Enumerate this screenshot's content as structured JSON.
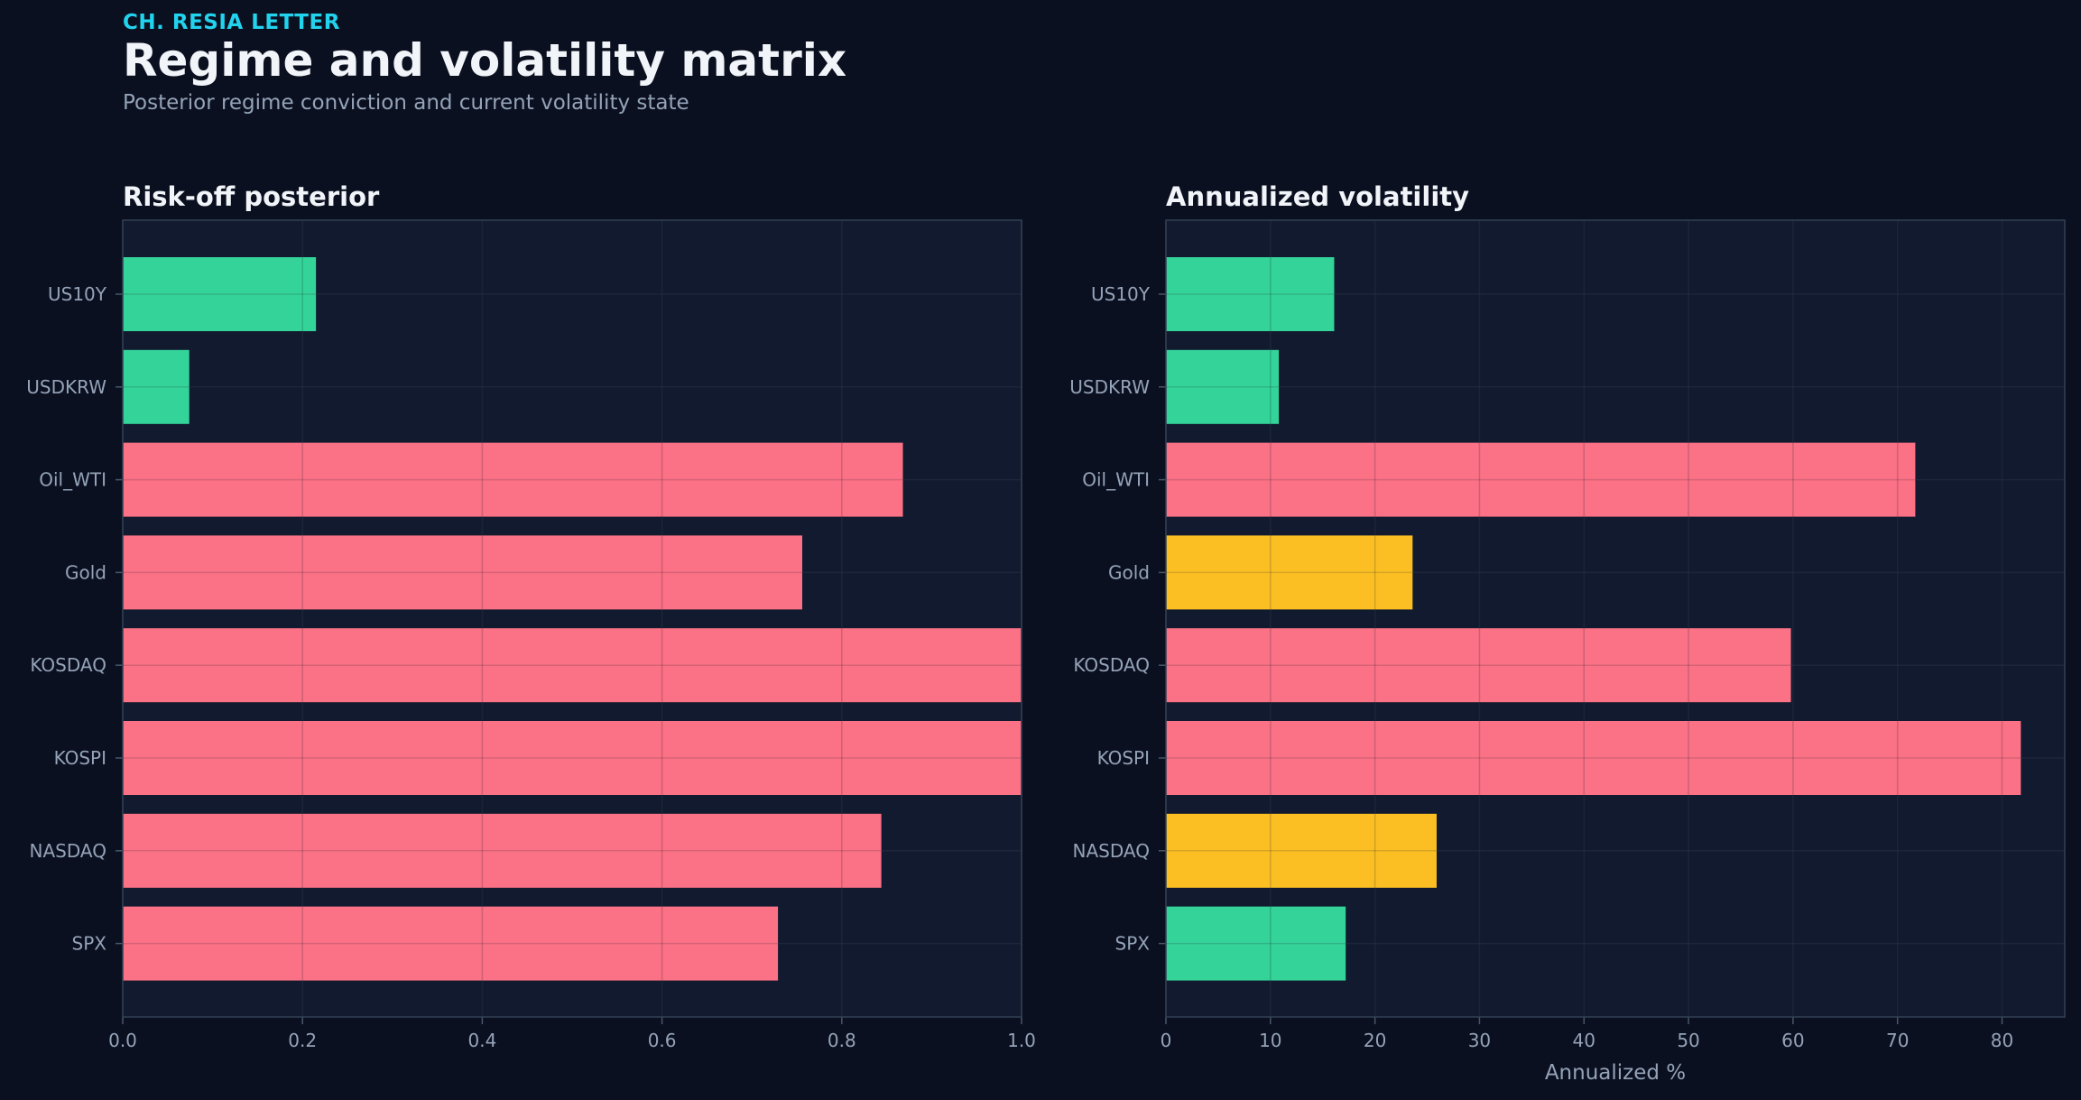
{
  "header": {
    "kicker": "CH. RESIA LETTER",
    "title": "Regime and volatility matrix",
    "subtitle": "Posterior regime conviction and current volatility state"
  },
  "colors": {
    "background": "#0b1020",
    "panel": "#111a2e",
    "risk_off": "#fb7185",
    "risk_on": "#34d399",
    "neutral": "#fbbf24",
    "text": "#f1f5f9",
    "muted": "#94a3b8"
  },
  "chart_data": [
    {
      "type": "bar",
      "orientation": "horizontal",
      "title": "Risk-off posterior",
      "xlabel": "",
      "ylabel": "",
      "categories": [
        "US10Y",
        "USDKRW",
        "Oil_WTI",
        "Gold",
        "KOSDAQ",
        "KOSPI",
        "NASDAQ",
        "SPX"
      ],
      "values": [
        0.215,
        0.074,
        0.868,
        0.756,
        1.0,
        1.0,
        0.844,
        0.729
      ],
      "bar_colors": [
        "#34d399",
        "#34d399",
        "#fb7185",
        "#fb7185",
        "#fb7185",
        "#fb7185",
        "#fb7185",
        "#fb7185"
      ],
      "xlim": [
        0,
        1.0
      ],
      "xticks": [
        "0.0",
        "0.2",
        "0.4",
        "0.6",
        "0.8",
        "1.0"
      ],
      "grid": true
    },
    {
      "type": "bar",
      "orientation": "horizontal",
      "title": "Annualized volatility",
      "xlabel": "Annualized %",
      "ylabel": "",
      "categories": [
        "US10Y",
        "USDKRW",
        "Oil_WTI",
        "Gold",
        "KOSDAQ",
        "KOSPI",
        "NASDAQ",
        "SPX"
      ],
      "values": [
        16.1,
        10.8,
        71.7,
        23.6,
        59.8,
        81.8,
        25.9,
        17.2
      ],
      "bar_colors": [
        "#34d399",
        "#34d399",
        "#fb7185",
        "#fbbf24",
        "#fb7185",
        "#fb7185",
        "#fbbf24",
        "#34d399"
      ],
      "xlim": [
        0,
        86
      ],
      "xticks": [
        "0",
        "10",
        "20",
        "30",
        "40",
        "50",
        "60",
        "70",
        "80"
      ],
      "grid": true
    }
  ]
}
